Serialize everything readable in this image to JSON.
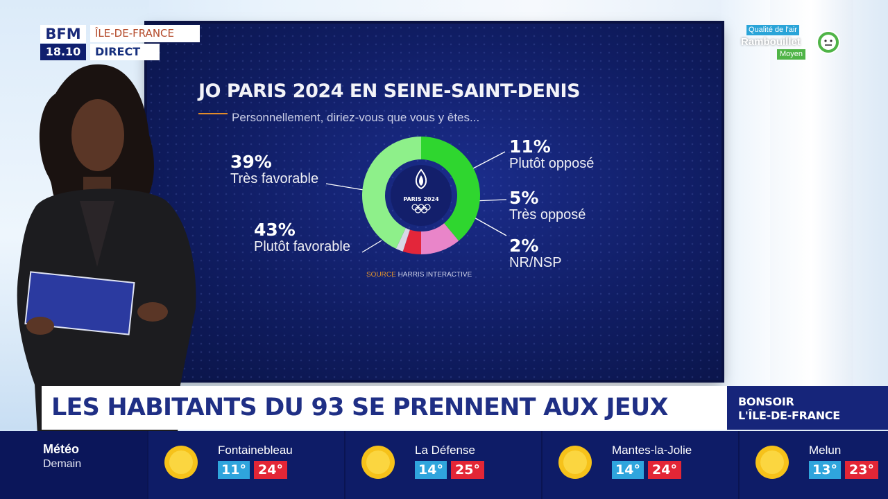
{
  "channel": {
    "logo_top": "BFM",
    "time": "18.10",
    "region": "ÎLE-DE-FRANCE",
    "live": "DIRECT"
  },
  "air_quality": {
    "label": "Qualité de l'air",
    "city": "Rambouillet",
    "level": "Moyen",
    "icon": "neutral-face-icon",
    "color": "#4fb447"
  },
  "chart_data": {
    "type": "pie",
    "style": "donut",
    "title": "JO PARIS 2024 EN SEINE-SAINT-DENIS",
    "subtitle": "Personnellement, diriez-vous que vous y êtes...",
    "center_logo_text": "PARIS 2024",
    "slices": [
      {
        "label": "Très favorable",
        "value": 39,
        "display": "39%",
        "color": "#2fd62f"
      },
      {
        "label": "Plutôt opposé",
        "value": 11,
        "display": "11%",
        "color": "#e985c9"
      },
      {
        "label": "Très opposé",
        "value": 5,
        "display": "5%",
        "color": "#e3263a"
      },
      {
        "label": "NR/NSP",
        "value": 2,
        "display": "2%",
        "color": "#d8d8e6"
      },
      {
        "label": "Plutôt favorable",
        "value": 43,
        "display": "43%",
        "color": "#8ef08a"
      }
    ],
    "source_key": "SOURCE",
    "source_value": "HARRIS INTERACTIVE"
  },
  "headline": "LES HABITANTS DU 93 SE PRENNENT AUX JEUX",
  "show": {
    "line1": "BONSOIR",
    "line2": "L'ÎLE-DE-FRANCE"
  },
  "weather": {
    "title": "Météo",
    "day": "Demain",
    "cities": [
      {
        "name": "Fontainebleau",
        "min": "11°",
        "max": "24°",
        "icon": "sun-icon"
      },
      {
        "name": "La Défense",
        "min": "14°",
        "max": "25°",
        "icon": "sun-icon"
      },
      {
        "name": "Mantes-la-Jolie",
        "min": "14°",
        "max": "24°",
        "icon": "sun-icon"
      },
      {
        "name": "Melun",
        "min": "13°",
        "max": "23°",
        "icon": "sun-icon"
      }
    ]
  }
}
